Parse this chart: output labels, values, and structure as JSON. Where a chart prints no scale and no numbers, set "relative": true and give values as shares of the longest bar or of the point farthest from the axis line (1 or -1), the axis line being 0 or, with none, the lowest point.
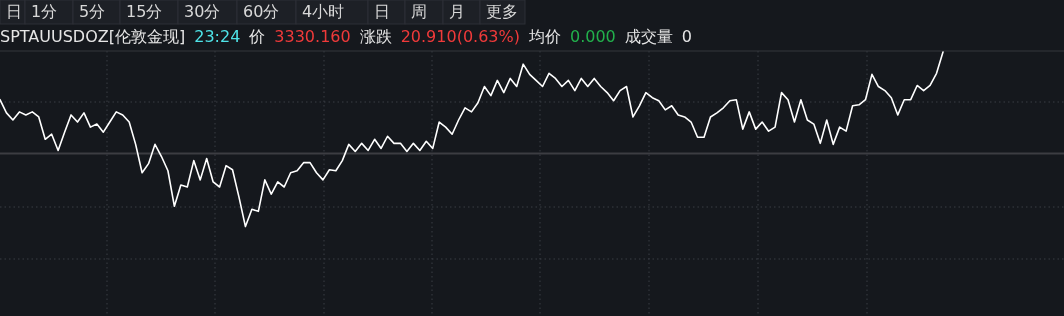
{
  "chart_data": {
    "type": "line",
    "relative": true,
    "title": "SPTAUUSDOZ[伦敦金现]",
    "annotations": [
      "日",
      "1分",
      "5分",
      "15分",
      "30分",
      "60分",
      "4小时",
      "日",
      "周",
      "月",
      "更多",
      "23:24",
      "价",
      "3330.160",
      "涨跌",
      "20.910(0.63%)",
      "均价",
      "0.000",
      "成交量",
      "0"
    ],
    "categories": [
      null,
      null,
      null,
      null,
      null,
      null,
      null,
      null,
      null,
      null,
      null,
      null,
      null,
      null,
      null,
      null,
      null,
      null,
      null,
      null,
      null,
      null,
      null,
      null,
      null,
      null,
      null,
      null,
      null,
      null,
      null,
      null,
      null,
      null,
      null,
      null,
      null,
      null,
      null,
      null,
      null,
      null,
      null,
      null,
      null,
      null,
      null,
      null,
      null,
      null,
      null,
      null,
      null,
      null,
      null,
      null,
      null,
      null,
      null,
      null,
      null,
      null,
      null,
      null,
      null,
      null,
      null,
      null,
      null,
      null,
      null,
      null,
      null,
      null,
      null,
      null,
      null,
      null,
      null,
      null,
      null,
      null,
      null,
      null,
      null,
      null,
      null,
      null,
      null,
      null,
      null,
      null,
      null,
      null,
      null,
      null,
      null,
      null,
      null,
      null,
      null,
      null,
      null,
      null,
      null,
      null,
      null,
      null,
      null,
      null,
      null,
      null,
      null,
      null,
      null,
      null,
      null,
      null,
      null,
      null,
      null,
      null,
      null,
      null,
      null,
      null,
      null,
      null,
      null,
      null,
      null,
      null,
      null,
      null,
      null,
      null,
      null,
      null,
      null,
      null,
      null,
      null,
      null,
      null,
      null,
      null,
      null
    ],
    "grid": true,
    "marker": "none",
    "line_style": "solid",
    "series": [
      {
        "color": "#ffffff",
        "values": [
          0.53,
          0.4,
          0.33,
          0.41,
          0.38,
          0.41,
          0.36,
          0.14,
          0.19,
          0.03,
          0.21,
          0.38,
          0.31,
          0.4,
          0.26,
          0.29,
          0.21,
          0.31,
          0.41,
          0.38,
          0.31,
          0.09,
          -0.19,
          -0.1,
          0.09,
          -0.03,
          -0.17,
          -0.52,
          -0.31,
          -0.33,
          -0.07,
          -0.26,
          -0.05,
          -0.28,
          -0.33,
          -0.12,
          -0.16,
          -0.43,
          -0.72,
          -0.55,
          -0.57,
          -0.26,
          -0.4,
          -0.28,
          -0.33,
          -0.19,
          -0.17,
          -0.09,
          -0.09,
          -0.19,
          -0.26,
          -0.16,
          -0.17,
          -0.07,
          0.09,
          0.02,
          0.1,
          0.03,
          0.14,
          0.05,
          0.17,
          0.1,
          0.1,
          0.02,
          0.1,
          0.03,
          0.12,
          0.05,
          0.31,
          0.26,
          0.19,
          0.33,
          0.45,
          0.41,
          0.5,
          0.66,
          0.57,
          0.72,
          0.6,
          0.74,
          0.66,
          0.88,
          0.78,
          0.72,
          0.66,
          0.79,
          0.74,
          0.66,
          0.72,
          0.62,
          0.74,
          0.66,
          0.74,
          0.66,
          0.6,
          0.52,
          0.62,
          0.66,
          0.36,
          0.47,
          0.6,
          0.55,
          0.52,
          0.43,
          0.47,
          0.38,
          0.36,
          0.31,
          0.16,
          0.16,
          0.36,
          0.4,
          0.45,
          0.52,
          0.53,
          0.24,
          0.41,
          0.24,
          0.31,
          0.22,
          0.26,
          0.6,
          0.53,
          0.31,
          0.53,
          0.33,
          0.29,
          0.1,
          0.33,
          0.09,
          0.26,
          0.22,
          0.47,
          0.48,
          0.53,
          0.78,
          0.66,
          0.62,
          0.55,
          0.38,
          0.53,
          0.53,
          0.67,
          0.62,
          0.67,
          0.79,
          1
        ]
      }
    ]
  }
}
